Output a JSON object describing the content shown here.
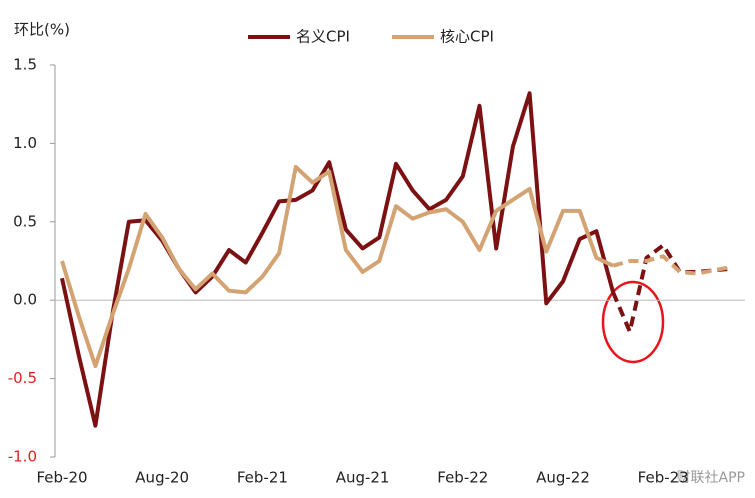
{
  "chart_data": {
    "type": "line",
    "y_label": "环比(%)",
    "categories": [
      "Feb-20",
      null,
      null,
      null,
      null,
      null,
      "Aug-20",
      null,
      null,
      null,
      null,
      null,
      "Feb-21",
      null,
      null,
      null,
      null,
      null,
      "Aug-21",
      null,
      null,
      null,
      null,
      null,
      "Feb-22",
      null,
      null,
      null,
      null,
      null,
      "Aug-22",
      null,
      null,
      null,
      null,
      null,
      "Feb-23",
      null,
      null,
      null,
      null
    ],
    "series": [
      {
        "name": "名义CPI",
        "color": "#7b1113",
        "dashed_from": 33,
        "values": [
          0.14,
          -0.35,
          -0.8,
          -0.1,
          0.5,
          0.51,
          0.38,
          0.2,
          0.05,
          0.15,
          0.32,
          0.24,
          0.43,
          0.63,
          0.64,
          0.7,
          0.88,
          0.45,
          0.33,
          0.4,
          0.87,
          0.7,
          0.58,
          0.64,
          0.79,
          1.24,
          0.33,
          0.98,
          1.32,
          -0.02,
          0.12,
          0.39,
          0.44,
          0.05,
          -0.2,
          0.27,
          0.35,
          0.18,
          0.18,
          0.19,
          0.2
        ]
      },
      {
        "name": "核心CPI",
        "color": "#d4a373",
        "dashed_from": 33,
        "values": [
          0.25,
          -0.1,
          -0.42,
          -0.1,
          0.2,
          0.55,
          0.4,
          0.2,
          0.07,
          0.17,
          0.06,
          0.05,
          0.15,
          0.3,
          0.85,
          0.75,
          0.82,
          0.32,
          0.18,
          0.25,
          0.6,
          0.52,
          0.56,
          0.58,
          0.5,
          0.32,
          0.57,
          0.64,
          0.71,
          0.31,
          0.57,
          0.57,
          0.27,
          0.22,
          0.25,
          0.25,
          0.28,
          0.18,
          0.17,
          0.19,
          0.21
        ]
      }
    ],
    "ylim": [
      -1.0,
      1.5
    ],
    "yticks": [
      {
        "value": -1.0,
        "label": "-1.0"
      },
      {
        "value": -0.5,
        "label": "-0.5"
      },
      {
        "value": 0,
        "label": "0.0"
      },
      {
        "value": 0.5,
        "label": "0.5"
      },
      {
        "value": 1.0,
        "label": "1.0"
      },
      {
        "value": 1.5,
        "label": "1.5"
      }
    ],
    "negative_tick_color": "#e02020",
    "watermark": "财联社APP"
  }
}
